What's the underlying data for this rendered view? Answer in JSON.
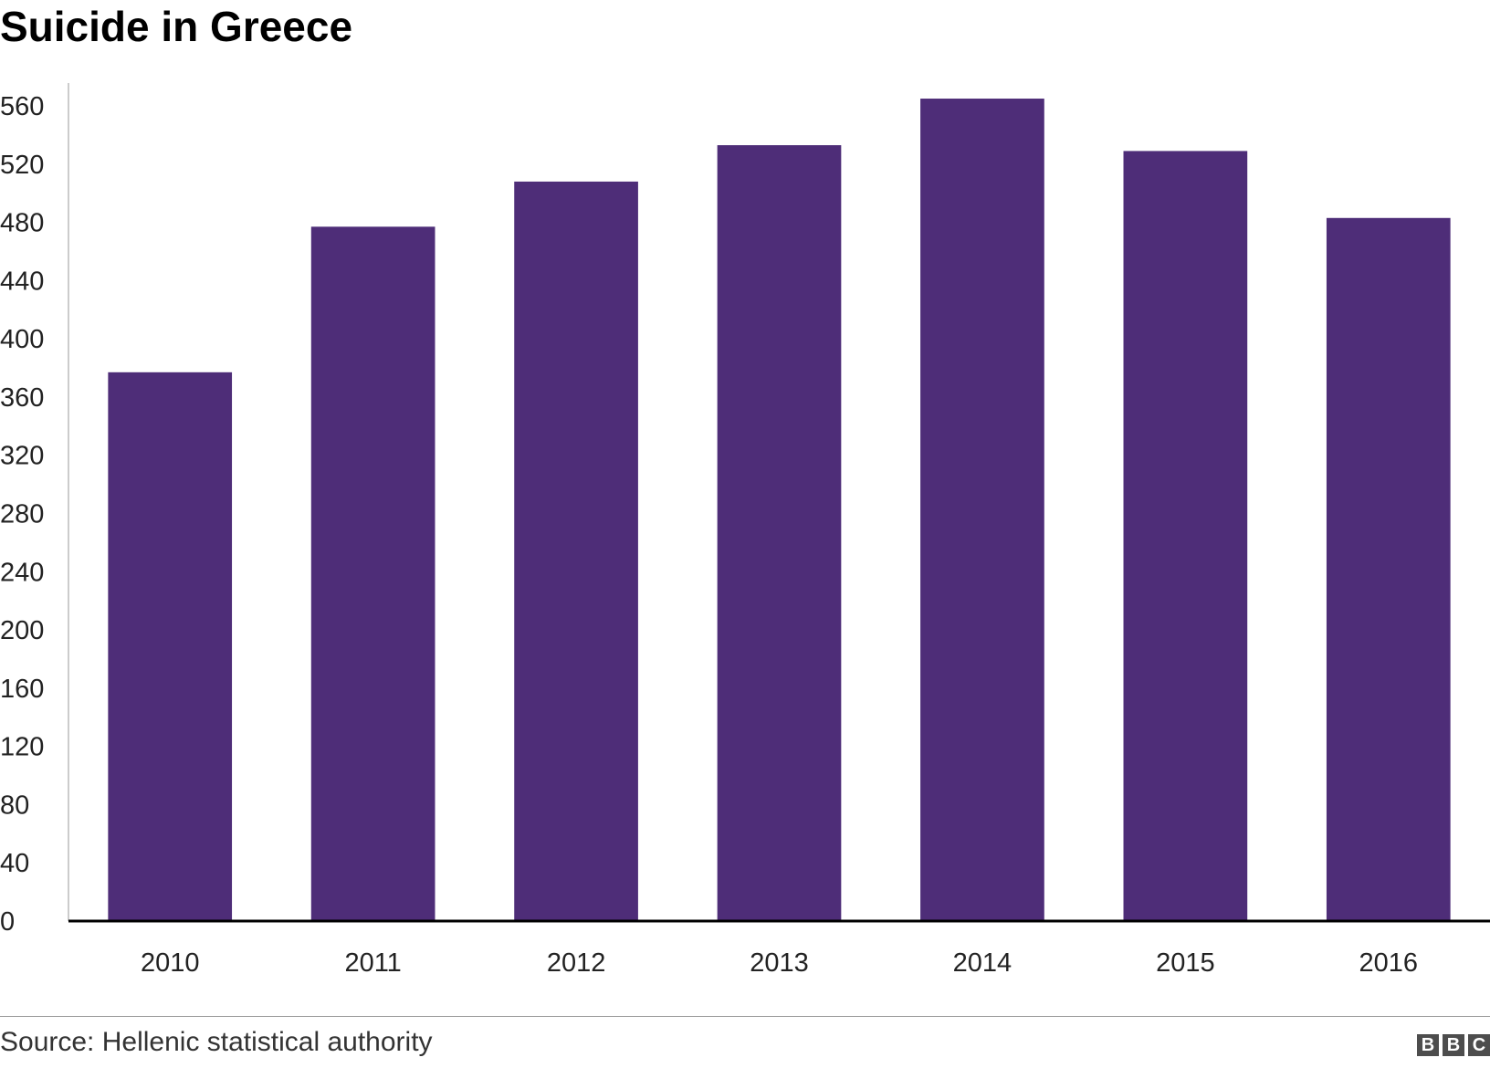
{
  "chart_data": {
    "type": "bar",
    "title": "Suicide in Greece",
    "xlabel": "",
    "ylabel": "",
    "categories": [
      "2010",
      "2011",
      "2012",
      "2013",
      "2014",
      "2015",
      "2016"
    ],
    "values": [
      377,
      477,
      508,
      533,
      565,
      529,
      483
    ],
    "ylim": [
      0,
      560
    ],
    "yticks": [
      0,
      40,
      80,
      120,
      160,
      200,
      240,
      280,
      320,
      360,
      400,
      440,
      480,
      520,
      560
    ],
    "grid": false,
    "legend": "none",
    "bar_color": "#4e2d78",
    "axis_color": "#000000"
  },
  "footer": {
    "source": "Source: Hellenic statistical authority",
    "logo_letters": [
      "B",
      "B",
      "C"
    ]
  }
}
